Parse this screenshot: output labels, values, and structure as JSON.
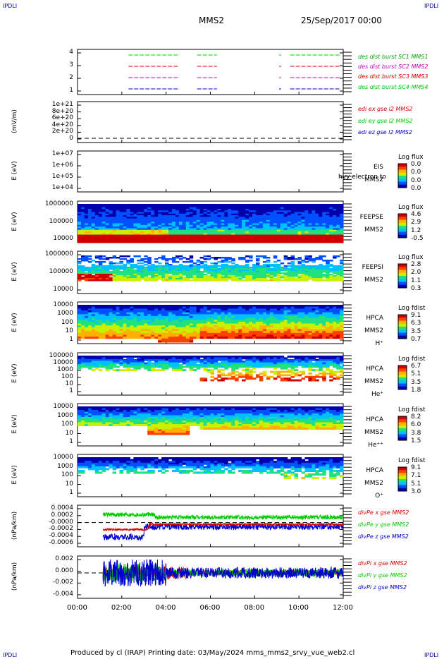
{
  "page": {
    "corner_label": "IPDLI",
    "title_left": "MMS2",
    "title_right": "25/Sep/2017 00:00",
    "footer": "Produced by cl (IRAP)   Printing date: 03/May/2024   mms_mms2_srvy_vue_web2.cl"
  },
  "colors": {
    "black": "#000000",
    "red": "#dd0000",
    "green": "#00cc00",
    "blue": "#0000cc",
    "magenta": "#cc00cc",
    "colormap": [
      "#0000aa",
      "#0050ff",
      "#00c0ff",
      "#20e080",
      "#c8f000",
      "#ffb000",
      "#ff4000",
      "#d00000"
    ]
  },
  "chart_data": [
    {
      "id": "burst",
      "type": "line",
      "yticks": [
        "4",
        "3",
        "2",
        "1"
      ],
      "ylim": [
        0.5,
        4.5
      ],
      "legend": [
        {
          "text": "des dist burst SC1 MMS1",
          "color": "#00aa00"
        },
        {
          "text": "des dist burst SC2 MMS2",
          "color": "#cc00cc"
        },
        {
          "text": "des dist burst SC3 MMS3",
          "color": "#dd0000"
        },
        {
          "text": "des dist burst SC4 MMS4",
          "color": "#00cc00"
        }
      ],
      "series": [
        {
          "level": 4,
          "color": "#00cc00",
          "intervals": [
            [
              2.3,
              4.6
            ],
            [
              5.4,
              6.3
            ],
            [
              9.1,
              9.2
            ],
            [
              9.6,
              11.9
            ]
          ]
        },
        {
          "level": 3,
          "color": "#dd0000",
          "intervals": [
            [
              2.3,
              4.6
            ],
            [
              5.4,
              6.3
            ],
            [
              9.1,
              9.2
            ],
            [
              9.6,
              11.9
            ]
          ]
        },
        {
          "level": 2,
          "color": "#cc00cc",
          "intervals": [
            [
              2.3,
              4.6
            ],
            [
              5.4,
              6.3
            ],
            [
              9.1,
              9.2
            ],
            [
              9.6,
              11.9
            ]
          ]
        },
        {
          "level": 1,
          "color": "#0000cc",
          "intervals": [
            [
              2.3,
              4.6
            ],
            [
              5.4,
              6.3
            ],
            [
              9.1,
              9.2
            ],
            [
              9.6,
              11.9
            ]
          ]
        }
      ]
    },
    {
      "id": "edi",
      "type": "line",
      "ylabel": "(mV/m)",
      "yticks": [
        "1e+21",
        "8e+20",
        "6e+20",
        "4e+20",
        "2e+20",
        "0"
      ],
      "legend": [
        {
          "text": "edi ex gse l2 MMS2",
          "color": "#dd0000"
        },
        {
          "text": "edi ey gse l2 MMS2",
          "color": "#00cc00"
        },
        {
          "text": "edi ez gse l2 MMS2",
          "color": "#0000cc"
        }
      ]
    },
    {
      "id": "eis",
      "type": "heatmap",
      "ylabel": "E (eV)",
      "yticks": [
        "1e+07",
        "1e+06",
        "1e+05",
        "1e+04"
      ],
      "instrument": [
        "EIS",
        "MMS2"
      ],
      "overlay_text": "hvy electron to",
      "colorbar": {
        "title": "Log flux",
        "values": [
          "0.0",
          "0.0",
          "0.0",
          "0.0"
        ]
      }
    },
    {
      "id": "feepse",
      "type": "heatmap",
      "ylabel": "E (eV)",
      "yticks": [
        "1000000",
        "100000",
        "10000"
      ],
      "instrument": [
        "FEEPSE",
        "MMS2"
      ],
      "colorbar": {
        "title": "Log flux",
        "values": [
          "4.6",
          "2.9",
          "1.2",
          "-0.5"
        ]
      }
    },
    {
      "id": "feepsi",
      "type": "heatmap",
      "ylabel": "E (eV)",
      "yticks": [
        "1000000",
        "100000",
        "10000"
      ],
      "instrument": [
        "FEEPSI",
        "MMS2"
      ],
      "colorbar": {
        "title": "Log flux",
        "values": [
          "2.8",
          "2.0",
          "1.1",
          "0.3"
        ]
      }
    },
    {
      "id": "hpca_h",
      "type": "heatmap",
      "ylabel": "E (eV)",
      "yticks": [
        "10000",
        "1000",
        "100",
        "10",
        "1"
      ],
      "instrument": [
        "HPCA",
        "MMS2",
        "H⁺"
      ],
      "colorbar": {
        "title": "Log fdist",
        "values": [
          "9.1",
          "6.3",
          "3.5",
          "0.7"
        ]
      }
    },
    {
      "id": "hpca_he",
      "type": "heatmap",
      "ylabel": "E (eV)",
      "yticks": [
        "100000",
        "10000",
        "1000",
        "100",
        "10",
        "1"
      ],
      "instrument": [
        "HPCA",
        "MMS2",
        "He⁺"
      ],
      "colorbar": {
        "title": "Log fdist",
        "values": [
          "6.7",
          "5.1",
          "3.5",
          "1.8"
        ]
      }
    },
    {
      "id": "hpca_hepp",
      "type": "heatmap",
      "ylabel": "E (eV)",
      "yticks": [
        "10000",
        "1000",
        "100",
        "10",
        "1"
      ],
      "instrument": [
        "HPCA",
        "MMS2",
        "He⁺⁺"
      ],
      "colorbar": {
        "title": "Log fdist",
        "values": [
          "8.2",
          "6.0",
          "3.8",
          "1.5"
        ]
      }
    },
    {
      "id": "hpca_o",
      "type": "heatmap",
      "ylabel": "E (eV)",
      "yticks": [
        "10000",
        "1000",
        "100",
        "10",
        "1"
      ],
      "instrument": [
        "HPCA",
        "MMS2",
        "O⁺"
      ],
      "colorbar": {
        "title": "Log fdist",
        "values": [
          "9.1",
          "7.1",
          "5.1",
          "3.0"
        ]
      }
    },
    {
      "id": "divpe",
      "type": "line",
      "ylabel": "(nPa/km)",
      "yticks": [
        "0.0004",
        "0.0002",
        "-0.0000",
        "-0.0002",
        "-0.0004",
        "-0.0006"
      ],
      "ylim": [
        -0.0007,
        0.0005
      ],
      "legend": [
        {
          "text": "divPe x gse MMS2",
          "color": "#dd0000"
        },
        {
          "text": "divPe y gse MMS2",
          "color": "#00cc00"
        },
        {
          "text": "divPe z gse MMS2",
          "color": "#0000cc"
        }
      ]
    },
    {
      "id": "divpi",
      "type": "line",
      "ylabel": "(nPa/km)",
      "yticks": [
        "0.002",
        "0.000",
        "-0.002",
        "-0.004"
      ],
      "ylim": [
        -0.0045,
        0.003
      ],
      "legend": [
        {
          "text": "divPi x gse MMS2",
          "color": "#dd0000"
        },
        {
          "text": "divPi y gse MMS2",
          "color": "#00cc00"
        },
        {
          "text": "divPi z gse MMS2",
          "color": "#0000cc"
        }
      ]
    }
  ],
  "xaxis": {
    "ticks": [
      "00:00",
      "02:00",
      "04:00",
      "06:00",
      "08:00",
      "10:00",
      "12:00"
    ],
    "range_hours": [
      0,
      12
    ]
  }
}
